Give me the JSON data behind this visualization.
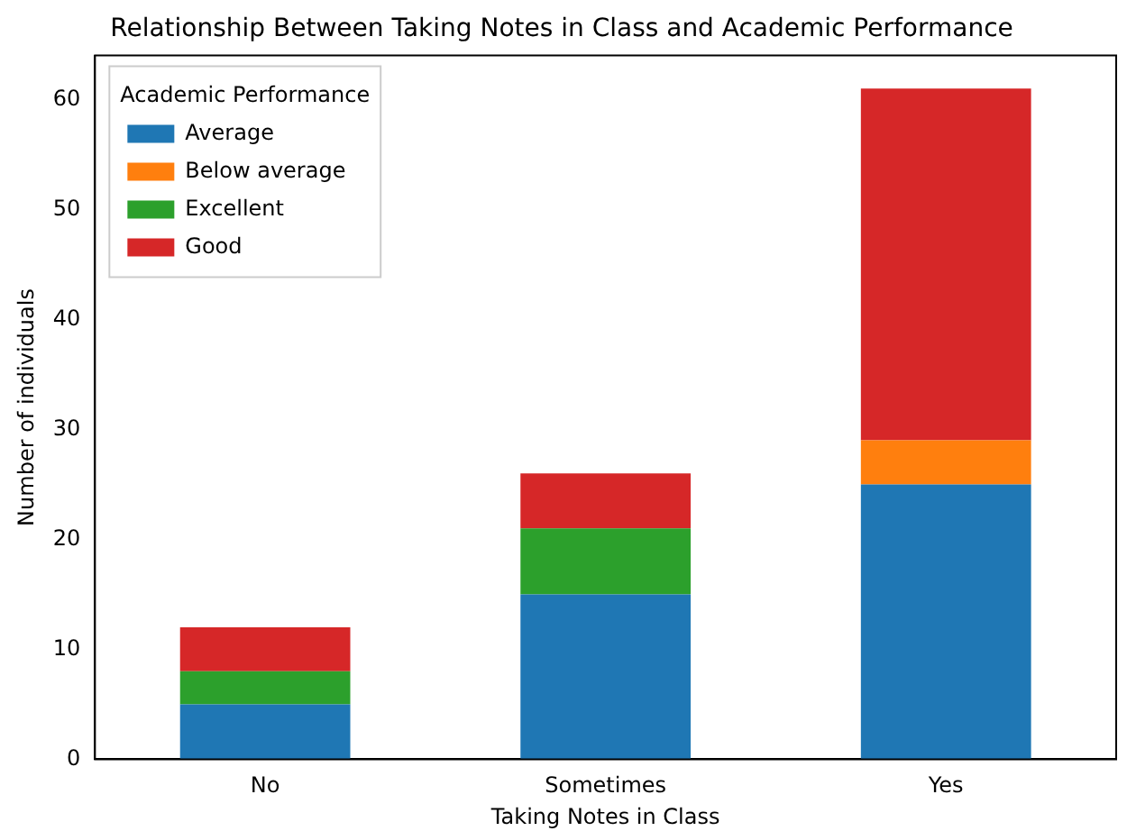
{
  "chart_data": {
    "type": "bar",
    "title": "Relationship Between Taking Notes in Class and Academic Performance",
    "xlabel": "Taking Notes in Class",
    "ylabel": "Number of individuals",
    "legend_title": "Academic Performance",
    "categories": [
      "No",
      "Sometimes",
      "Yes"
    ],
    "stacked": true,
    "series": [
      {
        "name": "Average",
        "color": "#1f77b4",
        "values": [
          5,
          15,
          25
        ]
      },
      {
        "name": "Below average",
        "color": "#ff7f0e",
        "values": [
          0,
          0,
          4
        ]
      },
      {
        "name": "Excellent",
        "color": "#2ca02c",
        "values": [
          3,
          6,
          0
        ]
      },
      {
        "name": "Good",
        "color": "#d62728",
        "values": [
          4,
          5,
          32
        ]
      }
    ],
    "ylim": [
      0,
      64
    ],
    "yticks": [
      0,
      10,
      20,
      30,
      40,
      50,
      60
    ],
    "grid": false,
    "legend": "top left"
  }
}
